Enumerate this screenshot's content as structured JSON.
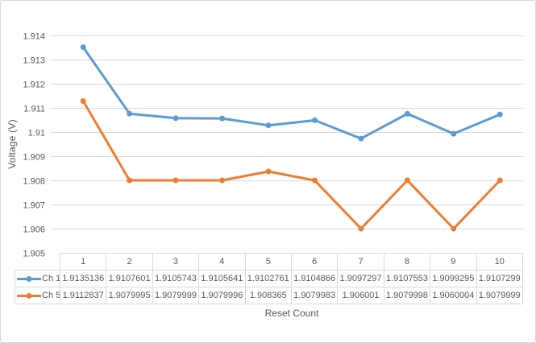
{
  "window": {
    "background": "#FFFFFF",
    "border_color": "#D7D7D7"
  },
  "colors": {
    "grid": "#D9D9D9",
    "axis_text": "#595959",
    "table_border": "#D9D9D9",
    "table_text": "#595959"
  },
  "chart_data": {
    "type": "line",
    "title": "",
    "xlabel": "Reset Count",
    "ylabel": "Voltage (V)",
    "categories": [
      "1",
      "2",
      "3",
      "4",
      "5",
      "6",
      "7",
      "8",
      "9",
      "10"
    ],
    "series": [
      {
        "name": "Ch 1",
        "color": "#5B9BD5",
        "values": [
          1.9135136,
          1.9107601,
          1.9105743,
          1.9105641,
          1.9102761,
          1.9104866,
          1.9097297,
          1.9107553,
          1.9099295,
          1.9107299
        ]
      },
      {
        "name": "Ch 5",
        "color": "#ED7D31",
        "values": [
          1.9112837,
          1.9079995,
          1.9079999,
          1.9079996,
          1.908365,
          1.9079983,
          1.906001,
          1.9079998,
          1.9060004,
          1.9079999
        ]
      }
    ],
    "ylim": [
      1.905,
      1.914
    ],
    "ytick_step": 0.001,
    "ytick_labels": [
      "1.914",
      "1.913",
      "1.912",
      "1.911",
      "1.91",
      "1.909",
      "1.908",
      "1.907",
      "1.906",
      "1.905"
    ],
    "grid": true,
    "legend_position": "embedded-in-data-table",
    "data_table_shown": true,
    "marker": "circle"
  }
}
